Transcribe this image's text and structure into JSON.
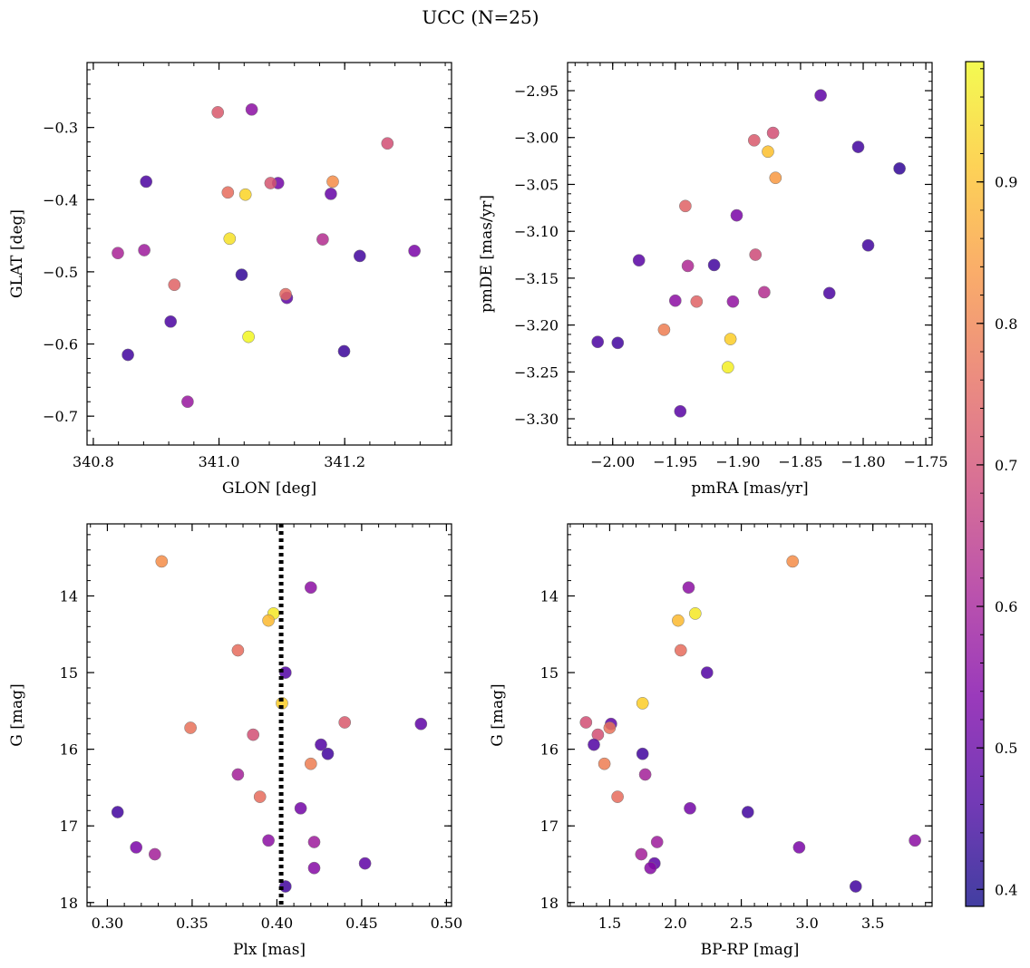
{
  "figure": {
    "title": "UCC (N=25)"
  },
  "colorbar": {
    "range": [
      0.388,
      0.985
    ],
    "ticks": [
      0.4,
      0.5,
      0.6,
      0.7,
      0.8,
      0.9
    ],
    "tick_labels": [
      "0.4",
      "0.5",
      "0.6",
      "0.7",
      "0.8",
      "0.9"
    ],
    "colormap": "plasma"
  },
  "chart_data": [
    {
      "type": "scatter",
      "id": "glon-glat",
      "xlabel": "GLON [deg]",
      "ylabel": "GLAT [deg]",
      "xlim": [
        340.79,
        341.37
      ],
      "ylim": [
        -0.74,
        -0.21
      ],
      "x_ticks": [
        340.8,
        341.0,
        341.2
      ],
      "x_tick_labels": [
        "340.8",
        "341.0",
        "341.2"
      ],
      "y_ticks": [
        -0.7,
        -0.6,
        -0.5,
        -0.4,
        -0.3
      ],
      "y_tick_labels": [
        "−0.7",
        "−0.6",
        "−0.5",
        "−0.4",
        "−0.3"
      ],
      "inverted_y": false,
      "points": [
        {
          "x": 341.094,
          "y": -0.377,
          "c": 0.52
        },
        {
          "x": 341.108,
          "y": -0.536,
          "c": 0.49
        },
        {
          "x": 341.047,
          "y": -0.59,
          "c": 0.98
        },
        {
          "x": 341.052,
          "y": -0.275,
          "c": 0.56
        },
        {
          "x": 340.998,
          "y": -0.279,
          "c": 0.72
        },
        {
          "x": 341.268,
          "y": -0.322,
          "c": 0.7
        },
        {
          "x": 340.884,
          "y": -0.375,
          "c": 0.46
        },
        {
          "x": 341.014,
          "y": -0.39,
          "c": 0.76
        },
        {
          "x": 341.042,
          "y": -0.393,
          "c": 0.93
        },
        {
          "x": 341.082,
          "y": -0.377,
          "c": 0.71
        },
        {
          "x": 341.181,
          "y": -0.375,
          "c": 0.82
        },
        {
          "x": 341.178,
          "y": -0.392,
          "c": 0.5
        },
        {
          "x": 341.017,
          "y": -0.454,
          "c": 0.95
        },
        {
          "x": 341.165,
          "y": -0.455,
          "c": 0.63
        },
        {
          "x": 340.839,
          "y": -0.474,
          "c": 0.61
        },
        {
          "x": 340.881,
          "y": -0.47,
          "c": 0.59
        },
        {
          "x": 341.224,
          "y": -0.478,
          "c": 0.45
        },
        {
          "x": 341.311,
          "y": -0.471,
          "c": 0.53
        },
        {
          "x": 341.036,
          "y": -0.504,
          "c": 0.43
        },
        {
          "x": 340.929,
          "y": -0.518,
          "c": 0.74
        },
        {
          "x": 341.106,
          "y": -0.531,
          "c": 0.75
        },
        {
          "x": 340.923,
          "y": -0.569,
          "c": 0.46
        },
        {
          "x": 341.199,
          "y": -0.61,
          "c": 0.44
        },
        {
          "x": 340.855,
          "y": -0.615,
          "c": 0.45
        },
        {
          "x": 340.95,
          "y": -0.68,
          "c": 0.58
        }
      ]
    },
    {
      "type": "scatter",
      "id": "pmra-pmde",
      "xlabel": "pmRA [mas/yr]",
      "ylabel": "pmDE [mas/yr]",
      "xlim": [
        -2.036,
        -1.745
      ],
      "ylim": [
        -3.328,
        -2.92
      ],
      "x_ticks": [
        -2.0,
        -1.95,
        -1.9,
        -1.85,
        -1.8,
        -1.75
      ],
      "x_tick_labels": [
        "−2.00",
        "−1.95",
        "−1.90",
        "−1.85",
        "−1.80",
        "−1.75"
      ],
      "y_ticks": [
        -3.3,
        -3.25,
        -3.2,
        -3.15,
        -3.1,
        -3.05,
        -3.0,
        -2.95
      ],
      "y_tick_labels": [
        "−3.30",
        "−3.25",
        "−3.20",
        "−3.15",
        "−3.10",
        "−3.05",
        "−3.00",
        "−2.95"
      ],
      "inverted_y": false,
      "points": [
        {
          "x": -1.834,
          "y": -2.955,
          "c": 0.49
        },
        {
          "x": -1.872,
          "y": -2.995,
          "c": 0.7
        },
        {
          "x": -1.887,
          "y": -3.003,
          "c": 0.72
        },
        {
          "x": -1.876,
          "y": -3.015,
          "c": 0.9
        },
        {
          "x": -1.804,
          "y": -3.01,
          "c": 0.45
        },
        {
          "x": -1.771,
          "y": -3.033,
          "c": 0.43
        },
        {
          "x": -1.87,
          "y": -3.043,
          "c": 0.84
        },
        {
          "x": -1.942,
          "y": -3.073,
          "c": 0.74
        },
        {
          "x": -1.901,
          "y": -3.083,
          "c": 0.53
        },
        {
          "x": -1.796,
          "y": -3.115,
          "c": 0.45
        },
        {
          "x": -1.886,
          "y": -3.125,
          "c": 0.69
        },
        {
          "x": -1.979,
          "y": -3.131,
          "c": 0.48
        },
        {
          "x": -1.94,
          "y": -3.137,
          "c": 0.62
        },
        {
          "x": -1.919,
          "y": -3.136,
          "c": 0.45
        },
        {
          "x": -1.879,
          "y": -3.165,
          "c": 0.63
        },
        {
          "x": -1.827,
          "y": -3.166,
          "c": 0.46
        },
        {
          "x": -1.95,
          "y": -3.174,
          "c": 0.56
        },
        {
          "x": -1.933,
          "y": -3.175,
          "c": 0.74
        },
        {
          "x": -1.904,
          "y": -3.175,
          "c": 0.57
        },
        {
          "x": -1.959,
          "y": -3.205,
          "c": 0.79
        },
        {
          "x": -2.012,
          "y": -3.218,
          "c": 0.46
        },
        {
          "x": -1.996,
          "y": -3.219,
          "c": 0.45
        },
        {
          "x": -1.906,
          "y": -3.215,
          "c": 0.92
        },
        {
          "x": -1.908,
          "y": -3.245,
          "c": 0.97
        },
        {
          "x": -1.946,
          "y": -3.292,
          "c": 0.48
        }
      ]
    },
    {
      "type": "scatter",
      "id": "plx-g",
      "xlabel": "Plx [mas]",
      "ylabel": "G [mag]",
      "xlim": [
        0.288,
        0.503
      ],
      "ylim": [
        18.05,
        13.06
      ],
      "x_ticks": [
        0.3,
        0.35,
        0.4,
        0.45,
        0.5
      ],
      "x_tick_labels": [
        "0.30",
        "0.35",
        "0.40",
        "0.45",
        "0.50"
      ],
      "y_ticks": [
        14,
        15,
        16,
        17,
        18
      ],
      "y_tick_labels": [
        "14",
        "15",
        "16",
        "17",
        "18"
      ],
      "inverted_y": true,
      "reference_line": {
        "x": 0.4025,
        "style": "dotted"
      },
      "points": [
        {
          "x": 0.332,
          "y": 13.55,
          "c": 0.82
        },
        {
          "x": 0.42,
          "y": 13.89,
          "c": 0.56
        },
        {
          "x": 0.398,
          "y": 14.23,
          "c": 0.96
        },
        {
          "x": 0.395,
          "y": 14.32,
          "c": 0.89
        },
        {
          "x": 0.377,
          "y": 14.71,
          "c": 0.76
        },
        {
          "x": 0.405,
          "y": 15.0,
          "c": 0.47
        },
        {
          "x": 0.403,
          "y": 15.4,
          "c": 0.92
        },
        {
          "x": 0.485,
          "y": 15.67,
          "c": 0.49
        },
        {
          "x": 0.44,
          "y": 15.65,
          "c": 0.72
        },
        {
          "x": 0.349,
          "y": 15.72,
          "c": 0.77
        },
        {
          "x": 0.386,
          "y": 15.81,
          "c": 0.7
        },
        {
          "x": 0.426,
          "y": 15.94,
          "c": 0.47
        },
        {
          "x": 0.43,
          "y": 16.06,
          "c": 0.45
        },
        {
          "x": 0.42,
          "y": 16.19,
          "c": 0.79
        },
        {
          "x": 0.377,
          "y": 16.33,
          "c": 0.6
        },
        {
          "x": 0.39,
          "y": 16.62,
          "c": 0.76
        },
        {
          "x": 0.414,
          "y": 16.77,
          "c": 0.52
        },
        {
          "x": 0.306,
          "y": 16.82,
          "c": 0.45
        },
        {
          "x": 0.395,
          "y": 17.19,
          "c": 0.56
        },
        {
          "x": 0.422,
          "y": 17.21,
          "c": 0.59
        },
        {
          "x": 0.317,
          "y": 17.28,
          "c": 0.53
        },
        {
          "x": 0.328,
          "y": 17.37,
          "c": 0.6
        },
        {
          "x": 0.452,
          "y": 17.49,
          "c": 0.49
        },
        {
          "x": 0.422,
          "y": 17.55,
          "c": 0.55
        },
        {
          "x": 0.405,
          "y": 17.79,
          "c": 0.45
        }
      ]
    },
    {
      "type": "scatter",
      "id": "bprp-g",
      "xlabel": "BP-RP [mag]",
      "ylabel": "G [mag]",
      "xlim": [
        1.18,
        3.95
      ],
      "ylim": [
        18.05,
        13.06
      ],
      "x_ticks": [
        1.5,
        2.0,
        2.5,
        3.0,
        3.5
      ],
      "x_tick_labels": [
        "1.5",
        "2.0",
        "2.5",
        "3.0",
        "3.5"
      ],
      "y_ticks": [
        14,
        15,
        16,
        17,
        18
      ],
      "y_tick_labels": [
        "14",
        "15",
        "16",
        "17",
        "18"
      ],
      "inverted_y": true,
      "points": [
        {
          "x": 2.89,
          "y": 13.55,
          "c": 0.82
        },
        {
          "x": 2.1,
          "y": 13.89,
          "c": 0.56
        },
        {
          "x": 2.15,
          "y": 14.23,
          "c": 0.96
        },
        {
          "x": 2.02,
          "y": 14.32,
          "c": 0.89
        },
        {
          "x": 2.04,
          "y": 14.71,
          "c": 0.76
        },
        {
          "x": 2.24,
          "y": 15.0,
          "c": 0.47
        },
        {
          "x": 1.75,
          "y": 15.4,
          "c": 0.92
        },
        {
          "x": 1.32,
          "y": 15.65,
          "c": 0.7
        },
        {
          "x": 1.51,
          "y": 15.67,
          "c": 0.49
        },
        {
          "x": 1.5,
          "y": 15.72,
          "c": 0.77
        },
        {
          "x": 1.41,
          "y": 15.81,
          "c": 0.7
        },
        {
          "x": 1.38,
          "y": 15.94,
          "c": 0.47
        },
        {
          "x": 1.75,
          "y": 16.06,
          "c": 0.45
        },
        {
          "x": 1.46,
          "y": 16.19,
          "c": 0.79
        },
        {
          "x": 1.77,
          "y": 16.33,
          "c": 0.6
        },
        {
          "x": 1.56,
          "y": 16.62,
          "c": 0.76
        },
        {
          "x": 2.11,
          "y": 16.77,
          "c": 0.52
        },
        {
          "x": 2.55,
          "y": 16.82,
          "c": 0.45
        },
        {
          "x": 3.82,
          "y": 17.19,
          "c": 0.56
        },
        {
          "x": 1.86,
          "y": 17.21,
          "c": 0.59
        },
        {
          "x": 2.94,
          "y": 17.28,
          "c": 0.53
        },
        {
          "x": 1.74,
          "y": 17.37,
          "c": 0.6
        },
        {
          "x": 1.84,
          "y": 17.49,
          "c": 0.49
        },
        {
          "x": 1.81,
          "y": 17.55,
          "c": 0.55
        },
        {
          "x": 3.37,
          "y": 17.79,
          "c": 0.45
        }
      ]
    }
  ]
}
